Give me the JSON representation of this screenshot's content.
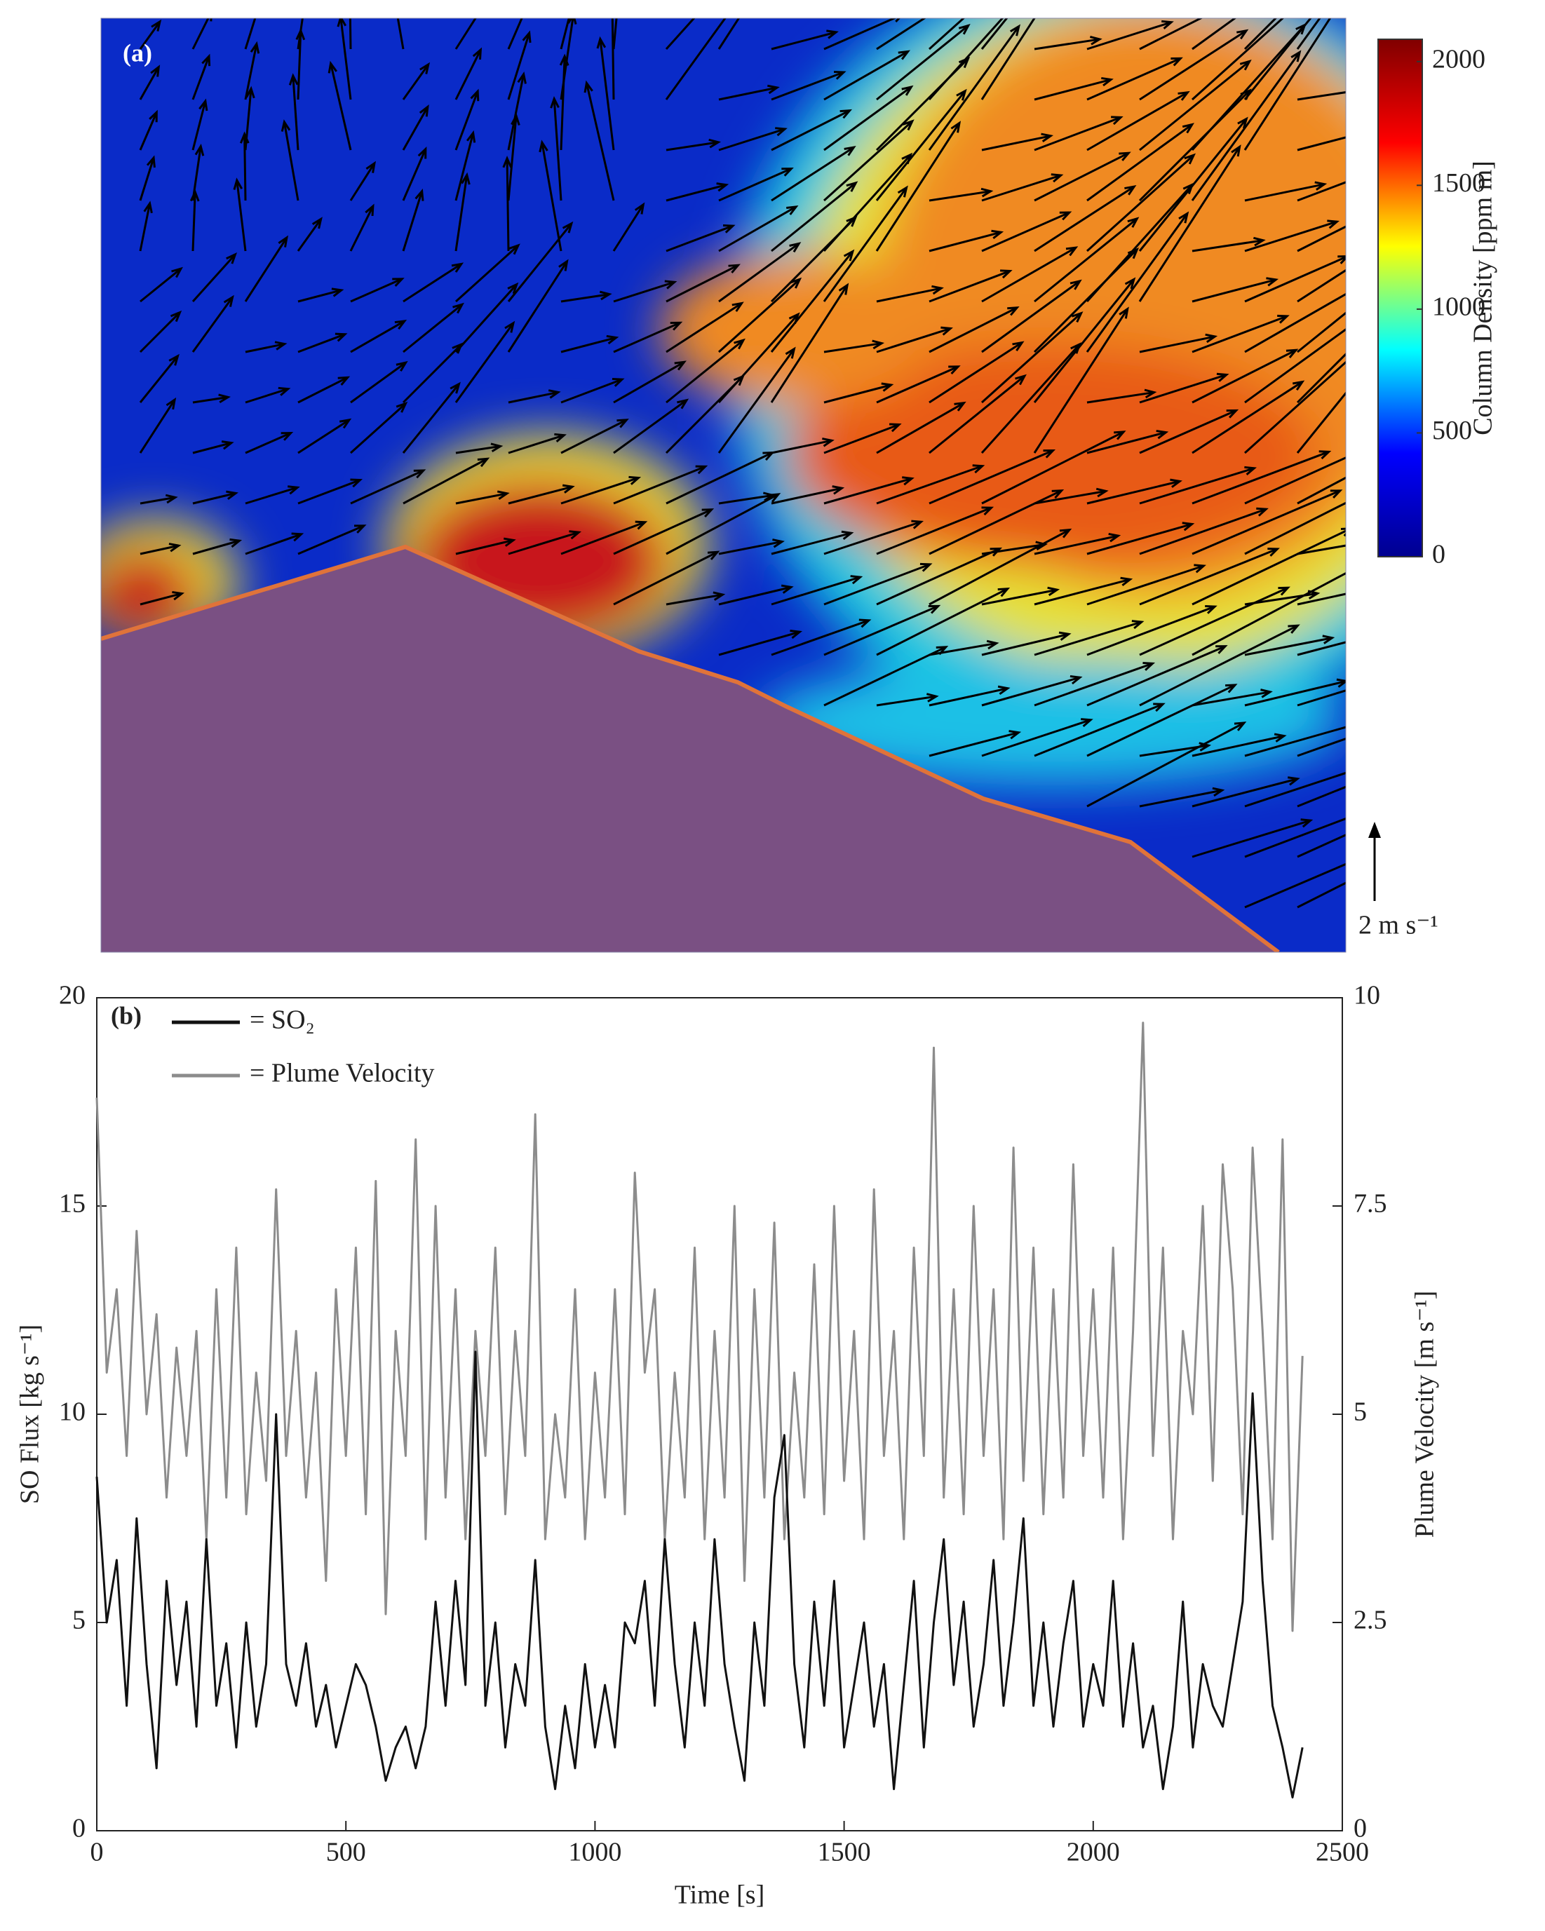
{
  "chart_data": [
    {
      "type": "image",
      "panel_label": "(a)",
      "colorbar_label": "Column Density [ppm m]",
      "colormap": "jet",
      "clim": [
        0,
        2090
      ],
      "cticks": [
        0,
        500,
        1000,
        1500,
        2000
      ],
      "scale_label": "2 m s⁻¹"
    },
    {
      "type": "line",
      "panel_label": "(b)",
      "xlabel": "Time [s]",
      "ylabel": "SO  Flux [kg s⁻¹]",
      "y2label": "Plume Velocity [m s⁻¹]",
      "xlim": [
        0,
        2500
      ],
      "xticks": [
        0,
        500,
        1000,
        1500,
        2000,
        2500
      ],
      "ylim": [
        0,
        20
      ],
      "yticks": [
        0,
        5,
        10,
        15,
        20
      ],
      "y2lim": [
        0,
        10
      ],
      "y2ticks": [
        0,
        2.5,
        5,
        7.5,
        10
      ],
      "legend": "upper left",
      "x": [
        0,
        20,
        40,
        60,
        80,
        100,
        120,
        140,
        160,
        180,
        200,
        220,
        240,
        260,
        280,
        300,
        320,
        340,
        360,
        380,
        400,
        420,
        440,
        460,
        480,
        500,
        520,
        540,
        560,
        580,
        600,
        620,
        640,
        660,
        680,
        700,
        720,
        740,
        760,
        780,
        800,
        820,
        840,
        860,
        880,
        900,
        920,
        940,
        960,
        980,
        1000,
        1020,
        1040,
        1060,
        1080,
        1100,
        1120,
        1140,
        1160,
        1180,
        1200,
        1220,
        1240,
        1260,
        1280,
        1300,
        1320,
        1340,
        1360,
        1380,
        1400,
        1420,
        1440,
        1460,
        1480,
        1500,
        1520,
        1540,
        1560,
        1580,
        1600,
        1620,
        1640,
        1660,
        1680,
        1700,
        1720,
        1740,
        1760,
        1780,
        1800,
        1820,
        1840,
        1860,
        1880,
        1900,
        1920,
        1940,
        1960,
        1980,
        2000,
        2020,
        2040,
        2060,
        2080,
        2100,
        2120,
        2140,
        2160,
        2180,
        2200,
        2220,
        2240,
        2260,
        2280,
        2300,
        2320,
        2340,
        2360,
        2380,
        2400,
        2420
      ],
      "series": [
        {
          "name": "= SO₂",
          "color": "#111111",
          "axis": "y",
          "values": [
            8.5,
            5,
            6.5,
            3,
            7.5,
            4,
            1.5,
            6,
            3.5,
            5.5,
            2.5,
            7,
            3,
            4.5,
            2,
            5,
            2.5,
            4,
            10,
            4,
            3,
            4.5,
            2.5,
            3.5,
            2,
            3,
            4,
            3.5,
            2.5,
            1.2,
            2,
            2.5,
            1.5,
            2.5,
            5.5,
            3,
            6,
            3.5,
            11.5,
            3,
            5,
            2,
            4,
            3,
            6.5,
            2.5,
            1,
            3,
            1.5,
            4,
            2,
            3.5,
            2,
            5,
            4.5,
            6,
            3,
            7,
            4,
            2,
            5,
            3,
            7,
            4,
            2.5,
            1.2,
            5,
            3,
            8,
            9.5,
            4,
            2,
            5.5,
            3,
            6,
            2,
            3.5,
            5,
            2.5,
            4,
            1,
            3.5,
            6,
            2,
            5,
            7,
            3.5,
            5.5,
            2.5,
            4,
            6.5,
            3,
            5,
            7.5,
            3,
            5,
            2.5,
            4.5,
            6,
            2.5,
            4,
            3,
            6,
            2.5,
            4.5,
            2,
            3,
            1,
            2.5,
            5.5,
            2,
            4,
            3,
            2.5,
            4,
            5.5,
            10.5,
            6,
            3,
            2,
            0.8,
            2
          ]
        },
        {
          "name": "= Plume Velocity",
          "color": "#8c8c8c",
          "axis": "y2",
          "values": [
            8.8,
            5.5,
            6.5,
            4.5,
            7.2,
            5,
            6.2,
            4,
            5.8,
            4.5,
            6,
            3.5,
            6.5,
            4,
            7,
            3.8,
            5.5,
            4.2,
            7.7,
            4.5,
            6,
            4,
            5.5,
            3,
            6.5,
            4.5,
            7,
            3.8,
            7.8,
            2.6,
            6,
            4.5,
            8.3,
            3.5,
            7.5,
            4,
            6.5,
            3.5,
            6,
            4.5,
            7,
            3.8,
            6,
            4.5,
            8.6,
            3.5,
            5,
            4,
            6.5,
            3.5,
            5.5,
            4,
            6.5,
            3.8,
            7.9,
            5.5,
            6.5,
            3.5,
            5.5,
            4,
            7,
            3.5,
            6,
            4,
            7.5,
            3,
            6.5,
            4,
            7.3,
            3.5,
            5.5,
            4,
            6.8,
            3.8,
            7.5,
            4.2,
            6,
            3.5,
            7.7,
            4.5,
            6,
            3.5,
            7,
            4.5,
            9.4,
            4,
            6.5,
            3.8,
            7.5,
            4.5,
            6.5,
            3.5,
            8.2,
            4.2,
            7,
            3.8,
            6.5,
            4,
            8,
            4.5,
            6.5,
            4,
            7,
            3.5,
            6,
            9.7,
            4.5,
            7,
            3.5,
            6,
            5,
            7.5,
            4.2,
            8,
            6.5,
            3.8,
            8.2,
            6,
            3.5,
            8.3,
            2.4,
            5.7
          ]
        }
      ]
    }
  ]
}
